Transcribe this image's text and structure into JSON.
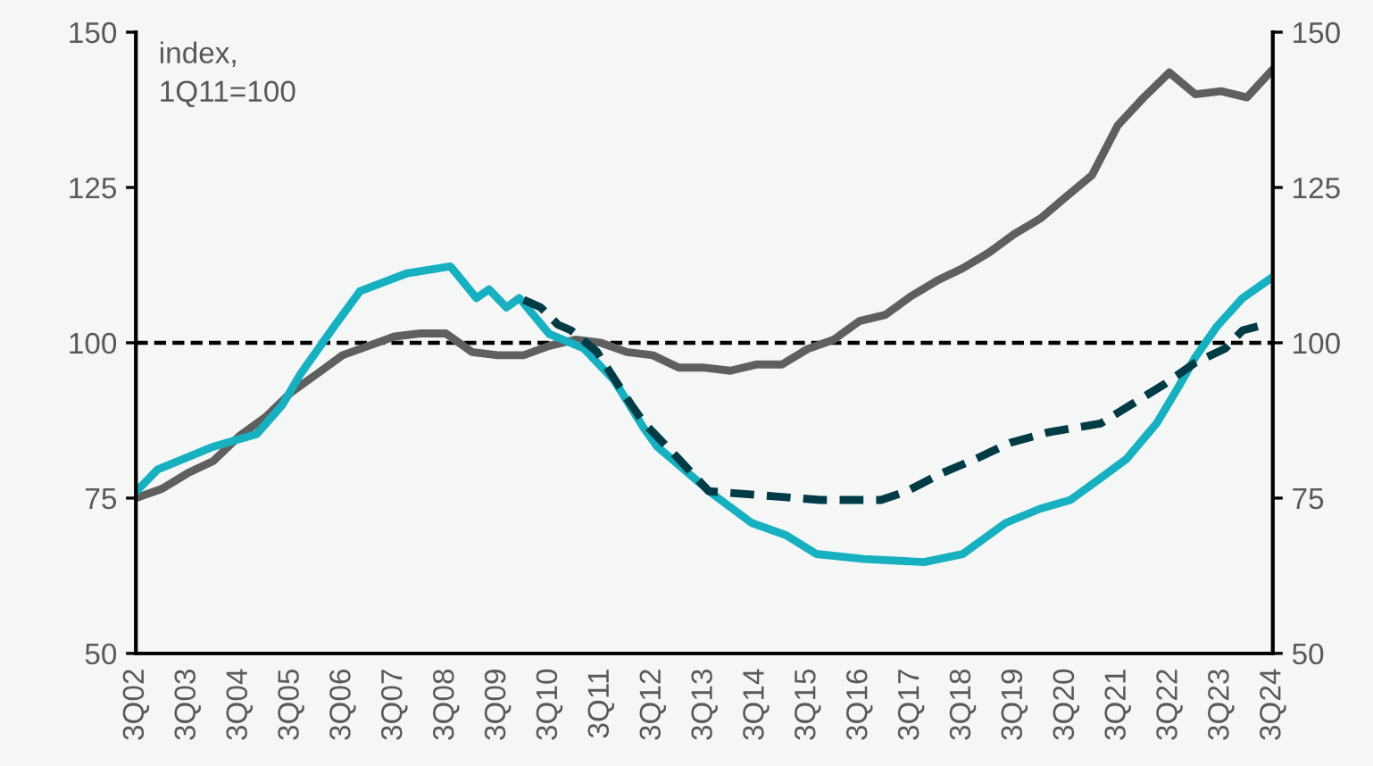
{
  "chart_data": {
    "type": "line",
    "annotations": [
      "index,\n1Q11=100"
    ],
    "xlim": [
      "2002-07",
      "2024-07"
    ],
    "xticks": [
      {
        "value": "2002-07",
        "label": "3Q02"
      },
      {
        "value": "2003-07",
        "label": "3Q03"
      },
      {
        "value": "2004-07",
        "label": "3Q04"
      },
      {
        "value": "2005-07",
        "label": "3Q05"
      },
      {
        "value": "2006-07",
        "label": "3Q06"
      },
      {
        "value": "2007-07",
        "label": "3Q07"
      },
      {
        "value": "2008-07",
        "label": "3Q08"
      },
      {
        "value": "2009-07",
        "label": "3Q09"
      },
      {
        "value": "2010-07",
        "label": "3Q10"
      },
      {
        "value": "2011-07",
        "label": "3Q11"
      },
      {
        "value": "2012-07",
        "label": "3Q12"
      },
      {
        "value": "2013-07",
        "label": "3Q13"
      },
      {
        "value": "2014-07",
        "label": "3Q14"
      },
      {
        "value": "2015-07",
        "label": "3Q15"
      },
      {
        "value": "2016-07",
        "label": "3Q16"
      },
      {
        "value": "2017-07",
        "label": "3Q17"
      },
      {
        "value": "2018-07",
        "label": "3Q18"
      },
      {
        "value": "2019-07",
        "label": "3Q19"
      },
      {
        "value": "2020-07",
        "label": "3Q20"
      },
      {
        "value": "2021-07",
        "label": "3Q21"
      },
      {
        "value": "2022-07",
        "label": "3Q22"
      },
      {
        "value": "2023-07",
        "label": "3Q23"
      },
      {
        "value": "2024-07",
        "label": "3Q24"
      }
    ],
    "ylim": [
      50,
      150
    ],
    "yticks": [
      50,
      75,
      100,
      125,
      150
    ],
    "y2lim": [
      50,
      150
    ],
    "y2ticks": [
      50,
      75,
      100,
      125,
      150
    ],
    "grid": false,
    "ref_lines": [
      {
        "axis": "y",
        "value": 100,
        "color": "#000000",
        "line_style": "dashed"
      }
    ],
    "series": [
      {
        "color": "#5f5f5f",
        "line_style": "solid",
        "x": [
          "2002-07",
          "2003-01",
          "2003-07",
          "2004-01",
          "2004-07",
          "2005-01",
          "2005-07",
          "2006-01",
          "2006-07",
          "2007-01",
          "2007-07",
          "2008-01",
          "2008-07",
          "2009-01",
          "2009-07",
          "2010-01",
          "2010-07",
          "2011-01",
          "2011-07",
          "2012-01",
          "2012-07",
          "2013-01",
          "2013-07",
          "2014-01",
          "2014-07",
          "2015-01",
          "2015-07",
          "2016-01",
          "2016-07",
          "2017-01",
          "2017-07",
          "2018-01",
          "2018-07",
          "2019-01",
          "2019-07",
          "2020-01",
          "2020-07",
          "2021-01",
          "2021-07",
          "2022-01",
          "2022-07",
          "2023-01",
          "2023-07",
          "2024-01",
          "2024-07"
        ],
        "values": [
          75,
          76.5,
          79,
          81,
          85,
          88,
          92,
          95,
          98,
          99.5,
          101,
          101.5,
          101.5,
          98.5,
          98,
          98,
          99.5,
          100.5,
          100,
          98.5,
          98,
          96,
          96,
          95.5,
          96.5,
          96.5,
          99,
          100.5,
          103.5,
          104.5,
          107.5,
          110,
          112,
          114.5,
          117.5,
          120,
          123.5,
          127,
          135,
          139.5,
          143.5,
          140,
          140.5,
          139.5,
          144
        ]
      },
      {
        "color": "#16b0c0",
        "line_style": "solid",
        "x": [
          "2002-07",
          "2002-12",
          "2003-06",
          "2004-01",
          "2004-11",
          "2005-05",
          "2005-09",
          "2006-05",
          "2006-11",
          "2007-10",
          "2008-08",
          "2009-02",
          "2009-05",
          "2009-09",
          "2009-12",
          "2010-07",
          "2011-03",
          "2011-10",
          "2012-05",
          "2012-08",
          "2013-09",
          "2014-06",
          "2015-02",
          "2015-09",
          "2016-08",
          "2017-10",
          "2018-07",
          "2019-05",
          "2020-01",
          "2020-08",
          "2021-03",
          "2021-09",
          "2022-04",
          "2022-09",
          "2023-01",
          "2023-06",
          "2023-12",
          "2024-07"
        ],
        "values": [
          76,
          79.6,
          81.3,
          83.3,
          85.3,
          90,
          94.8,
          102.6,
          108.3,
          111.2,
          112.3,
          107.2,
          108.6,
          105.7,
          107.2,
          101.4,
          99.1,
          94,
          86.2,
          83.3,
          75.6,
          71,
          69,
          66,
          65.2,
          64.7,
          66,
          71,
          73.3,
          74.7,
          78.2,
          81.3,
          87,
          92.8,
          97.7,
          102.6,
          107.2,
          110.6
        ]
      },
      {
        "color": "#003b46",
        "line_style": "dashed",
        "x": [
          "2010-01",
          "2010-05",
          "2010-09",
          "2010-12",
          "2011-06",
          "2011-10",
          "2012-02",
          "2012-05",
          "2013-01",
          "2013-08",
          "2014-11",
          "2015-10",
          "2016-12",
          "2017-06",
          "2018-02",
          "2018-10",
          "2019-06",
          "2020-03",
          "2020-08",
          "2021-03",
          "2021-10",
          "2022-06",
          "2023-01",
          "2023-08",
          "2023-12",
          "2024-05"
        ],
        "values": [
          106.9,
          105.7,
          102.9,
          102,
          98.6,
          94.3,
          90,
          87.1,
          81.3,
          76.1,
          75.3,
          74.7,
          74.7,
          76.1,
          79,
          81.3,
          83.9,
          85.6,
          86.2,
          87,
          90,
          93.4,
          96.8,
          99.1,
          102,
          102.9
        ]
      }
    ]
  }
}
